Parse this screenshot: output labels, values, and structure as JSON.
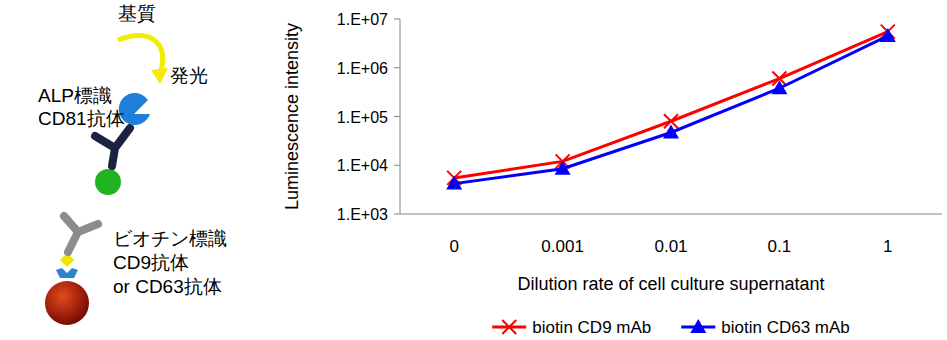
{
  "chart_data": {
    "type": "line",
    "x_label": "Dilution rate of cell culture supernatant",
    "y_label": "Luminescence intensity",
    "categories": [
      "0",
      "0.001",
      "0.01",
      "0.1",
      "1"
    ],
    "series": [
      {
        "name": "biotin CD9 mAb",
        "color": "#ff0000",
        "marker": "cross",
        "values": [
          5500,
          12000,
          80000,
          600000,
          5500000
        ]
      },
      {
        "name": "biotin CD63 mAb",
        "color": "#0000ff",
        "marker": "triangle",
        "values": [
          4200,
          8500,
          47000,
          380000,
          4500000
        ]
      }
    ],
    "log": "y",
    "ylim": [
      1000,
      10000000
    ],
    "yticks": [
      {
        "value": 1000,
        "label": "1.E+03"
      },
      {
        "value": 10000,
        "label": "1.E+04"
      },
      {
        "value": 100000,
        "label": "1.E+05"
      },
      {
        "value": 1000000,
        "label": "1.E+06"
      },
      {
        "value": 10000000,
        "label": "1.E+07"
      }
    ],
    "grid": false,
    "legend": "bottom"
  },
  "diagram": {
    "substrate": "基質",
    "emission": "発光",
    "detection_antibody": [
      "ALP標識",
      "CD81抗体"
    ],
    "capture_antibody": [
      "ビオチン標識",
      "CD9抗体",
      "or CD63抗体"
    ]
  }
}
